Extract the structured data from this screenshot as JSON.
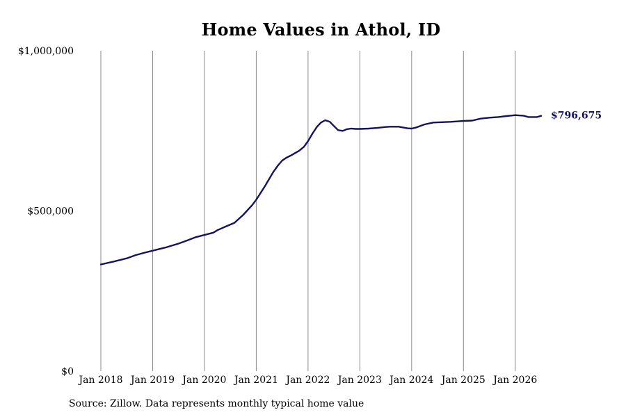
{
  "chart_data": {
    "type": "line",
    "title": "Home Values in Athol, ID",
    "source": "Source: Zillow. Data represents monthly typical home value",
    "xlabel": "",
    "ylabel": "",
    "ylim": [
      0,
      1000000
    ],
    "yticks": [
      {
        "value": 0,
        "label": "$0"
      },
      {
        "value": 500000,
        "label": "$500,000"
      },
      {
        "value": 1000000,
        "label": "$1,000,000"
      }
    ],
    "xlim": [
      2018.0,
      2026.5
    ],
    "xticks": [
      {
        "value": 2018.0,
        "label": "Jan 2018"
      },
      {
        "value": 2019.0,
        "label": "Jan 2019"
      },
      {
        "value": 2020.0,
        "label": "Jan 2020"
      },
      {
        "value": 2021.0,
        "label": "Jan 2021"
      },
      {
        "value": 2022.0,
        "label": "Jan 2022"
      },
      {
        "value": 2023.0,
        "label": "Jan 2023"
      },
      {
        "value": 2024.0,
        "label": "Jan 2024"
      },
      {
        "value": 2025.0,
        "label": "Jan 2025"
      },
      {
        "value": 2026.0,
        "label": "Jan 2026"
      }
    ],
    "grid": "vertical",
    "line_color": "#15135e",
    "end_label": "$796,675",
    "series": [
      {
        "x": [
          2018.0,
          2018.25,
          2018.5,
          2018.67,
          2018.83,
          2019.0,
          2019.25,
          2019.5,
          2019.67,
          2019.83,
          2020.0,
          2020.17,
          2020.25,
          2020.42,
          2020.58,
          2020.75,
          2020.92,
          2021.0,
          2021.17,
          2021.33,
          2021.42,
          2021.5,
          2021.58,
          2021.67,
          2021.83,
          2021.92,
          2022.0,
          2022.08,
          2022.17,
          2022.25,
          2022.33,
          2022.42,
          2022.5,
          2022.58,
          2022.67,
          2022.75,
          2022.83,
          2022.92,
          2023.0,
          2023.17,
          2023.33,
          2023.5,
          2023.58,
          2023.75,
          2023.92,
          2024.0,
          2024.08,
          2024.25,
          2024.42,
          2024.58,
          2024.75,
          2024.92,
          2025.0,
          2025.17,
          2025.33,
          2025.5,
          2025.67,
          2025.83,
          2026.0,
          2026.17,
          2026.25,
          2026.42,
          2026.5
        ],
        "y": [
          333000,
          342000,
          352000,
          362000,
          369000,
          376000,
          386000,
          398000,
          408000,
          418000,
          425000,
          432000,
          440000,
          452000,
          463000,
          488000,
          518000,
          535000,
          578000,
          622000,
          642000,
          657000,
          666000,
          673000,
          688000,
          700000,
          718000,
          740000,
          762000,
          776000,
          783000,
          778000,
          765000,
          752000,
          750000,
          755000,
          757000,
          756000,
          756000,
          757000,
          759000,
          762000,
          763000,
          763000,
          758000,
          757000,
          760000,
          770000,
          776000,
          777000,
          778000,
          780000,
          781000,
          782000,
          788000,
          791000,
          793000,
          796000,
          799000,
          797000,
          793000,
          793000,
          796675
        ]
      }
    ]
  }
}
